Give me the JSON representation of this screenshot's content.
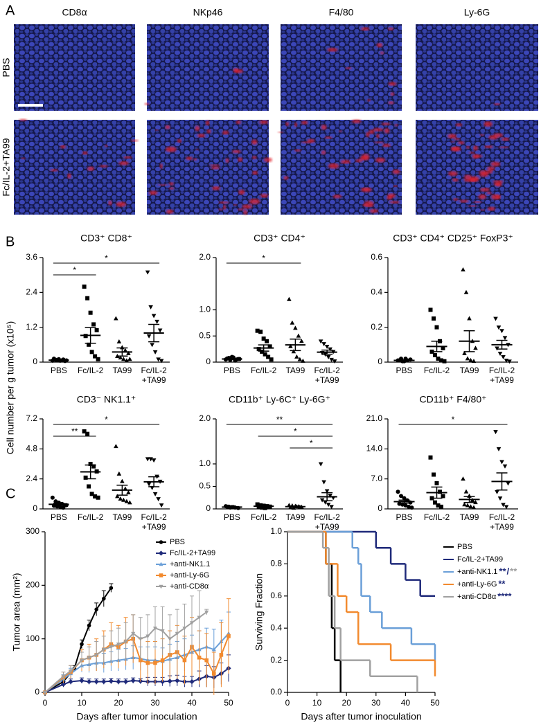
{
  "figure": {
    "panel_labels": [
      "A",
      "B",
      "C"
    ],
    "images": {
      "columns": [
        "CD8α",
        "NKp46",
        "F4/80",
        "Ly-6G"
      ],
      "rows": [
        "PBS",
        "Fc/IL-2+TA99"
      ]
    },
    "b_ylabel": "Cell number per g tumor (x10⁵)"
  },
  "chart_data": [
    {
      "type": "dot",
      "title": "CD3⁺ CD8⁺",
      "categories": [
        "PBS",
        "Fc/IL-2",
        "TA99",
        "Fc/IL-2\n+TA99"
      ],
      "groups": [
        [
          0.05,
          0.08,
          0.1,
          0.06,
          0.04,
          0.12,
          0.07,
          0.05,
          0.09,
          0.06
        ],
        [
          2.6,
          2.2,
          1.7,
          1.3,
          1.1,
          0.9,
          0.6,
          0.35,
          0.2,
          0.1
        ],
        [
          1.5,
          0.7,
          0.5,
          0.4,
          0.3,
          0.2,
          0.15,
          0.1,
          0.05,
          0.1
        ],
        [
          3.1,
          1.9,
          1.6,
          1.4,
          1.1,
          0.9,
          0.6,
          0.35,
          0.1,
          0.05
        ]
      ],
      "mean": [
        0.07,
        0.92,
        0.35,
        1.0
      ],
      "sem": [
        0.01,
        0.27,
        0.14,
        0.3
      ],
      "ylim": [
        0,
        3.6
      ],
      "yticks": [
        0,
        1.2,
        2.4,
        3.6
      ],
      "significance": [
        {
          "label": "*",
          "between": [
            "PBS",
            "Fc/IL-2\n+TA99"
          ]
        },
        {
          "label": "*",
          "between": [
            "PBS",
            "Fc/IL-2"
          ]
        }
      ]
    },
    {
      "type": "dot",
      "title": "CD3⁺ CD4⁺",
      "categories": [
        "PBS",
        "Fc/IL-2",
        "TA99",
        "Fc/IL-2\n+TA99"
      ],
      "groups": [
        [
          0.05,
          0.08,
          0.1,
          0.03,
          0.06,
          0.07,
          0.04,
          0.09,
          0.05,
          0.06
        ],
        [
          0.6,
          0.58,
          0.45,
          0.4,
          0.3,
          0.25,
          0.2,
          0.15,
          0.1,
          0.05
        ],
        [
          1.2,
          0.75,
          0.65,
          0.5,
          0.4,
          0.3,
          0.2,
          0.1,
          0.05,
          0.02
        ],
        [
          0.4,
          0.35,
          0.3,
          0.25,
          0.2,
          0.18,
          0.15,
          0.1,
          0.05,
          0.02
        ]
      ],
      "mean": [
        0.06,
        0.27,
        0.33,
        0.19
      ],
      "sem": [
        0.01,
        0.06,
        0.11,
        0.04
      ],
      "ylim": [
        0,
        2
      ],
      "yticks": [
        0,
        0.5,
        {
          "value": 1,
          "label": "1.0"
        },
        {
          "value": 2,
          "label": "2.0"
        }
      ],
      "significance": [
        {
          "label": "*",
          "between": [
            "PBS",
            "TA99"
          ]
        }
      ]
    },
    {
      "type": "dot",
      "title": "CD3⁺ CD4⁺ CD25⁺ FoxP3⁺",
      "categories": [
        "PBS",
        "Fc/IL-2",
        "TA99",
        "Fc/IL-2\n+TA99"
      ],
      "groups": [
        [
          0.01,
          0.02,
          0.005,
          0.01,
          0.015,
          0.01,
          0.005,
          0.02
        ],
        [
          0.3,
          0.25,
          0.2,
          0.12,
          0.08,
          0.06,
          0.04,
          0.02,
          0.01,
          0.005
        ],
        [
          0.53,
          0.4,
          0.25,
          0.12,
          0.08,
          0.05,
          0.02,
          0.01,
          0.005
        ],
        [
          0.25,
          0.2,
          0.18,
          0.14,
          0.1,
          0.08,
          0.05,
          0.03,
          0.01,
          0.005
        ]
      ],
      "mean": [
        0.01,
        0.09,
        0.12,
        0.1
      ],
      "sem": [
        0.003,
        0.03,
        0.06,
        0.025
      ],
      "ylim": [
        0,
        0.6
      ],
      "yticks": [
        0,
        0.2,
        0.4,
        0.6
      ],
      "significance": []
    },
    {
      "type": "dot",
      "title": "CD3⁻ NK1.1⁺",
      "categories": [
        "PBS",
        "Fc/IL-2",
        "TA99",
        "Fc/IL-2\n+TA99"
      ],
      "groups": [
        [
          0.9,
          0.6,
          0.5,
          0.4,
          0.3,
          0.25,
          0.2,
          0.15,
          0.1,
          0.3
        ],
        [
          6.2,
          6.0,
          3.6,
          3.4,
          3.0,
          2.5,
          1.8,
          1.2,
          1.0,
          0.9
        ],
        [
          5.0,
          2.8,
          2.2,
          1.6,
          1.3,
          1.0,
          0.8,
          0.7,
          0.6,
          0.5
        ],
        [
          4.0,
          4.0,
          3.9,
          2.6,
          2.2,
          2.0,
          1.7,
          1.2,
          0.8,
          0.3
        ]
      ],
      "mean": [
        0.37,
        2.96,
        1.5,
        2.17
      ],
      "sem": [
        0.08,
        0.55,
        0.4,
        0.4
      ],
      "ylim": [
        0,
        7.2
      ],
      "yticks": [
        0,
        2.4,
        4.8,
        7.2
      ],
      "significance": [
        {
          "label": "*",
          "between": [
            "PBS",
            "Fc/IL-2\n+TA99"
          ]
        },
        {
          "label": "**",
          "between": [
            "PBS",
            "Fc/IL-2"
          ]
        }
      ]
    },
    {
      "type": "dot",
      "title": "CD11b⁺ Ly-6C⁺ Ly-6G⁺",
      "categories": [
        "PBS",
        "Fc/IL-2",
        "TA99",
        "Fc/IL-2\n+TA99"
      ],
      "groups": [
        [
          0.06,
          0.05,
          0.04,
          0.03,
          0.02,
          0.05,
          0.03,
          0.04
        ],
        [
          0.1,
          0.08,
          0.07,
          0.06,
          0.05,
          0.04,
          0.03,
          0.02,
          0.05
        ],
        [
          0.08,
          0.07,
          0.06,
          0.05,
          0.04,
          0.03,
          0.02,
          0.05,
          0.04
        ],
        [
          1.0,
          0.6,
          0.4,
          0.3,
          0.25,
          0.2,
          0.15,
          0.1,
          0.05
        ]
      ],
      "mean": [
        0.04,
        0.06,
        0.05,
        0.27
      ],
      "sem": [
        0.01,
        0.01,
        0.01,
        0.09
      ],
      "ylim": [
        0,
        2
      ],
      "yticks": [
        0,
        0.5,
        {
          "value": 1,
          "label": "1.0"
        },
        {
          "value": 2,
          "label": "2.0"
        }
      ],
      "significance": [
        {
          "label": "**",
          "between": [
            "PBS",
            "Fc/IL-2\n+TA99"
          ]
        },
        {
          "label": "*",
          "between": [
            "Fc/IL-2",
            "Fc/IL-2\n+TA99"
          ]
        },
        {
          "label": "*",
          "between": [
            "TA99",
            "Fc/IL-2\n+TA99"
          ]
        }
      ]
    },
    {
      "type": "dot",
      "title": "CD11b⁺ F4/80⁺",
      "categories": [
        "PBS",
        "Fc/IL-2",
        "TA99",
        "Fc/IL-2\n+TA99"
      ],
      "groups": [
        [
          4,
          3,
          2.5,
          2,
          1.5,
          1.2,
          1,
          0.8,
          0.5,
          0.3
        ],
        [
          12,
          8,
          6,
          4,
          3,
          2.5,
          1.5,
          0.8,
          0.5
        ],
        [
          7,
          4,
          3,
          2,
          1.5,
          1,
          0.8,
          0.5,
          0.3
        ],
        [
          18,
          14,
          11,
          10,
          6,
          4,
          2.5,
          1,
          0.5
        ]
      ],
      "mean": [
        1.7,
        3.8,
        2.2,
        6.4
      ],
      "sem": [
        0.35,
        1.3,
        0.7,
        2
      ],
      "ylim": [
        0,
        21
      ],
      "yticks": [
        0,
        {
          "value": 7,
          "label": "7.0"
        },
        {
          "value": 14,
          "label": "14.0"
        },
        {
          "value": 21,
          "label": "21.0"
        }
      ],
      "significance": [
        {
          "label": "*",
          "between": [
            "PBS",
            "Fc/IL-2\n+TA99"
          ]
        }
      ]
    },
    {
      "type": "line",
      "xlabel": "Days after tumor inoculation",
      "ylabel": "Tumor area (mm²)",
      "xlim": [
        0,
        50
      ],
      "xticks": [
        0,
        10,
        20,
        30,
        40,
        50
      ],
      "ylim": [
        0,
        300
      ],
      "yticks": [
        0,
        100,
        200,
        300
      ],
      "series": [
        {
          "name": "PBS",
          "color": "#000000",
          "x": [
            0,
            5,
            8,
            10,
            12,
            14,
            16,
            18
          ],
          "values": [
            0,
            20,
            45,
            90,
            125,
            155,
            175,
            195
          ],
          "errors": [
            0,
            3,
            5,
            8,
            10,
            12,
            15,
            8
          ]
        },
        {
          "name": "Fc/IL-2+TA99",
          "color": "#1f2a7a",
          "x": [
            0,
            5,
            7,
            10,
            12,
            14,
            16,
            18,
            20,
            22,
            24,
            26,
            28,
            30,
            32,
            34,
            36,
            38,
            40,
            42,
            44,
            46,
            48,
            50
          ],
          "values": [
            0,
            15,
            20,
            22,
            20,
            20,
            20,
            21,
            20,
            20,
            22,
            21,
            20,
            20,
            20,
            21,
            22,
            20,
            20,
            25,
            30,
            28,
            35,
            45
          ],
          "errors": [
            0,
            5,
            5,
            5,
            5,
            5,
            5,
            5,
            5,
            5,
            5,
            5,
            8,
            8,
            8,
            10,
            10,
            10,
            10,
            15,
            20,
            20,
            20,
            25
          ]
        },
        {
          "name": "+anti-NK1.1",
          "color": "#6a9fd8",
          "x": [
            0,
            5,
            7,
            10,
            12,
            14,
            16,
            18,
            20,
            22,
            24,
            26,
            28,
            30,
            32,
            34,
            36,
            38,
            40,
            42,
            44,
            46,
            48,
            50
          ],
          "values": [
            0,
            25,
            35,
            50,
            52,
            55,
            55,
            58,
            60,
            62,
            65,
            63,
            60,
            60,
            58,
            62,
            65,
            70,
            75,
            80,
            85,
            80,
            95,
            110
          ],
          "errors": [
            0,
            8,
            10,
            12,
            15,
            15,
            18,
            18,
            20,
            20,
            22,
            22,
            25,
            25,
            25,
            28,
            30,
            30,
            32,
            35,
            35,
            38,
            40,
            40
          ]
        },
        {
          "name": "+anti-Ly-6G",
          "color": "#f28a2e",
          "x": [
            0,
            5,
            7,
            10,
            12,
            14,
            16,
            18,
            20,
            22,
            24,
            26,
            28,
            30,
            32,
            34,
            36,
            38,
            40,
            42,
            44,
            46,
            48,
            50
          ],
          "values": [
            0,
            28,
            38,
            60,
            65,
            70,
            80,
            90,
            85,
            95,
            100,
            60,
            55,
            55,
            60,
            70,
            75,
            60,
            85,
            65,
            60,
            35,
            70,
            105
          ],
          "errors": [
            0,
            10,
            12,
            20,
            25,
            30,
            35,
            40,
            40,
            45,
            45,
            40,
            40,
            40,
            40,
            45,
            50,
            45,
            55,
            50,
            50,
            40,
            60,
            70
          ]
        },
        {
          "name": "+anti-CD8α",
          "color": "#a0a0a0",
          "x": [
            0,
            5,
            7,
            10,
            12,
            14,
            16,
            18,
            20,
            22,
            24,
            26,
            28,
            30,
            32,
            34,
            36,
            38,
            40,
            42,
            44
          ],
          "values": [
            0,
            30,
            40,
            60,
            65,
            70,
            80,
            85,
            90,
            95,
            110,
            100,
            105,
            120,
            115,
            100,
            110,
            120,
            130,
            140,
            150
          ],
          "errors": [
            0,
            8,
            10,
            15,
            20,
            25,
            25,
            30,
            30,
            35,
            35,
            40,
            40,
            40,
            45,
            45,
            45,
            45,
            50,
            50,
            5
          ]
        }
      ]
    },
    {
      "type": "step",
      "xlabel": "Days after tumor inoculation",
      "ylabel": "Surviving Fraction",
      "xlim": [
        0,
        50
      ],
      "xticks": [
        0,
        10,
        20,
        30,
        40,
        50
      ],
      "ylim": [
        0,
        1
      ],
      "yticks": [
        {
          "value": 0,
          "label": "0.0"
        },
        0.2,
        0.4,
        0.6,
        0.8,
        {
          "value": 1,
          "label": "1.0"
        }
      ],
      "series": [
        {
          "name": "PBS",
          "color": "#000000",
          "x": [
            0,
            13,
            15,
            16,
            18
          ],
          "values": [
            1,
            0.8,
            0.4,
            0.2,
            0
          ]
        },
        {
          "name": "Fc/IL-2+TA99",
          "color": "#1f2a7a",
          "x": [
            0,
            30,
            35,
            40,
            45,
            50
          ],
          "values": [
            1,
            0.9,
            0.8,
            0.7,
            0.6,
            0.6
          ]
        },
        {
          "name": "+anti-NK1.1",
          "color": "#6a9fd8",
          "x": [
            0,
            22,
            24,
            25,
            28,
            32,
            42,
            50
          ],
          "values": [
            1,
            0.9,
            0.8,
            0.6,
            0.5,
            0.4,
            0.3,
            0.2
          ],
          "marks": [
            {
              "text": "**",
              "color": "#1f2a7a"
            },
            {
              "text": "/",
              "color": "#1f2a7a"
            },
            {
              "text": "**",
              "color": "#a0a0a0"
            }
          ]
        },
        {
          "name": "+anti-Ly-6G",
          "color": "#f28a2e",
          "x": [
            0,
            13,
            17,
            20,
            24,
            35,
            50
          ],
          "values": [
            1,
            0.8,
            0.6,
            0.5,
            0.3,
            0.2,
            0.1
          ],
          "marks": [
            {
              "text": "**",
              "color": "#1f2a7a"
            }
          ]
        },
        {
          "name": "+anti-CD8α",
          "color": "#a0a0a0",
          "x": [
            0,
            12,
            14,
            16,
            18,
            28,
            44
          ],
          "values": [
            1,
            0.9,
            0.6,
            0.4,
            0.2,
            0.1,
            0
          ],
          "marks": [
            {
              "text": "****",
              "color": "#1f2a7a"
            }
          ]
        }
      ]
    }
  ]
}
